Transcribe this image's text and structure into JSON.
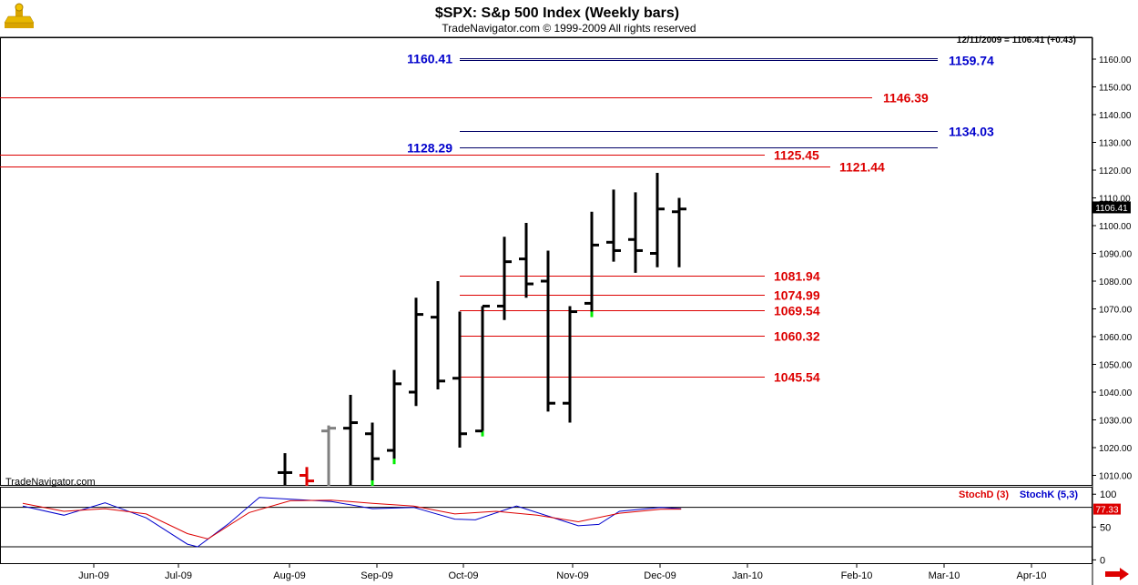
{
  "header": {
    "title": "$SPX:  S&p 500 Index  (Weekly bars)",
    "copyright": "TradeNavigator.com © 1999-2009 All rights reserved",
    "last_quote": "12/11/2009 = 1106.41 (+0.43)",
    "watermark": "TradeNavigator.com"
  },
  "colors": {
    "red": "#dd0000",
    "blue": "#0000cc",
    "navy": "#000066",
    "bar": "#000000",
    "gray_bar": "#808080",
    "green_marker": "#00ee00"
  },
  "chart_data": {
    "type": "ohlc",
    "price_axis": {
      "ylim": [
        1005,
        1168
      ],
      "ticks": [
        1010,
        1020,
        1030,
        1040,
        1050,
        1060,
        1070,
        1080,
        1090,
        1100,
        1110,
        1120,
        1130,
        1140,
        1150,
        1160
      ],
      "tick_labels": [
        "1010.00",
        "1020.00",
        "1030.00",
        "1040.00",
        "1050.00",
        "1060.00",
        "1070.00",
        "1080.00",
        "1090.00",
        "1100.00",
        "1110.00",
        "1120.00",
        "1130.00",
        "1140.00",
        "1150.00",
        "1160.00"
      ]
    },
    "last_price_label": "1106.41",
    "x_labels": [
      "Jun-09",
      "Jul-09",
      "Aug-09",
      "Sep-09",
      "Oct-09",
      "Nov-09",
      "Dec-09",
      "Jan-10",
      "Feb-10",
      "Mar-10",
      "Apr-10"
    ],
    "bars": [
      {
        "week": "2009-07-31",
        "high": 1018,
        "low": 1005,
        "open": 1011,
        "close": 1011
      },
      {
        "week": "2009-08-07",
        "high": 1013,
        "low": 1005,
        "open": 1010,
        "close": 1008,
        "color": "red"
      },
      {
        "week": "2009-08-14",
        "high": 1028,
        "low": 1005,
        "open": 1026,
        "close": 1027,
        "color": "gray"
      },
      {
        "week": "2009-08-21",
        "high": 1039,
        "low": 1005,
        "open": 1027,
        "close": 1029
      },
      {
        "week": "2009-08-28",
        "high": 1029,
        "low": 1005,
        "open": 1025,
        "close": 1016,
        "marker": true
      },
      {
        "week": "2009-09-04",
        "high": 1048,
        "low": 1016,
        "open": 1019,
        "close": 1043,
        "marker": true
      },
      {
        "week": "2009-09-11",
        "high": 1074,
        "low": 1035,
        "open": 1040,
        "close": 1068
      },
      {
        "week": "2009-09-18",
        "high": 1080,
        "low": 1041,
        "open": 1067,
        "close": 1044
      },
      {
        "week": "2009-09-25",
        "high": 1069,
        "low": 1020,
        "open": 1045,
        "close": 1025
      },
      {
        "week": "2009-10-02",
        "high": 1071,
        "low": 1026,
        "open": 1026,
        "close": 1071,
        "marker": true
      },
      {
        "week": "2009-10-09",
        "high": 1096,
        "low": 1066,
        "open": 1071,
        "close": 1087
      },
      {
        "week": "2009-10-16",
        "high": 1101,
        "low": 1074,
        "open": 1088,
        "close": 1079
      },
      {
        "week": "2009-10-23",
        "high": 1091,
        "low": 1033,
        "open": 1080,
        "close": 1036
      },
      {
        "week": "2009-10-30",
        "high": 1071,
        "low": 1029,
        "open": 1036,
        "close": 1069
      },
      {
        "week": "2009-11-06",
        "high": 1105,
        "low": 1069,
        "open": 1072,
        "close": 1093,
        "marker": true
      },
      {
        "week": "2009-11-13",
        "high": 1113,
        "low": 1087,
        "open": 1094,
        "close": 1091
      },
      {
        "week": "2009-11-20",
        "high": 1112,
        "low": 1083,
        "open": 1095,
        "close": 1091
      },
      {
        "week": "2009-11-27",
        "high": 1119,
        "low": 1085,
        "open": 1090,
        "close": 1106
      },
      {
        "week": "2009-12-04",
        "high": 1110,
        "low": 1085,
        "open": 1105,
        "close": 1106
      }
    ],
    "levels": [
      {
        "value": 1159.74,
        "label": "1159.74",
        "color": "navy",
        "label_color": "blue",
        "double": true
      },
      {
        "value": 1160.41,
        "label": "1160.41",
        "color": "navy",
        "label_color": "blue"
      },
      {
        "value": 1146.39,
        "label": "1146.39",
        "color": "red",
        "label_color": "red"
      },
      {
        "value": 1134.03,
        "label": "1134.03",
        "color": "navy",
        "label_color": "blue"
      },
      {
        "value": 1128.29,
        "label": "1128.29",
        "color": "navy",
        "label_color": "blue"
      },
      {
        "value": 1125.45,
        "label": "1125.45",
        "color": "red",
        "label_color": "red"
      },
      {
        "value": 1121.44,
        "label": "1121.44",
        "color": "red",
        "label_color": "red"
      },
      {
        "value": 1081.94,
        "label": "1081.94",
        "color": "red",
        "label_color": "red"
      },
      {
        "value": 1074.99,
        "label": "1074.99",
        "color": "red",
        "label_color": "red"
      },
      {
        "value": 1069.54,
        "label": "1069.54",
        "color": "red",
        "label_color": "red"
      },
      {
        "value": 1060.32,
        "label": "1060.32",
        "color": "red",
        "label_color": "red"
      },
      {
        "value": 1045.54,
        "label": "1045.54",
        "color": "red",
        "label_color": "red"
      }
    ],
    "stochastic": {
      "legend_d": "StochD (3)",
      "legend_k": "StochK (5,3)",
      "ylim": [
        -5,
        110
      ],
      "ticks": [
        0,
        50,
        100
      ],
      "tick_labels": [
        "0",
        "50",
        "100"
      ],
      "reference_line": 80,
      "bottom_line": 20,
      "current_label": "77.33",
      "d_values": [
        [
          0,
          86
        ],
        [
          4,
          74
        ],
        [
          8,
          78
        ],
        [
          12,
          70
        ],
        [
          16,
          40
        ],
        [
          18,
          32
        ],
        [
          22,
          72
        ],
        [
          26,
          90
        ],
        [
          30,
          91
        ],
        [
          34,
          86
        ],
        [
          38,
          82
        ],
        [
          42,
          70
        ],
        [
          46,
          74
        ],
        [
          50,
          68
        ],
        [
          54,
          58
        ],
        [
          58,
          71
        ],
        [
          62,
          77
        ],
        [
          64,
          77.33
        ]
      ],
      "k_values": [
        [
          0,
          82
        ],
        [
          4,
          68
        ],
        [
          8,
          87
        ],
        [
          12,
          64
        ],
        [
          16,
          24
        ],
        [
          17,
          20
        ],
        [
          20,
          55
        ],
        [
          23,
          95
        ],
        [
          30,
          89
        ],
        [
          34,
          78
        ],
        [
          38,
          80
        ],
        [
          42,
          62
        ],
        [
          44,
          61
        ],
        [
          48,
          82
        ],
        [
          52,
          62
        ],
        [
          54,
          52
        ],
        [
          56,
          54
        ],
        [
          58,
          74
        ],
        [
          62,
          80
        ],
        [
          64,
          78
        ]
      ]
    }
  }
}
